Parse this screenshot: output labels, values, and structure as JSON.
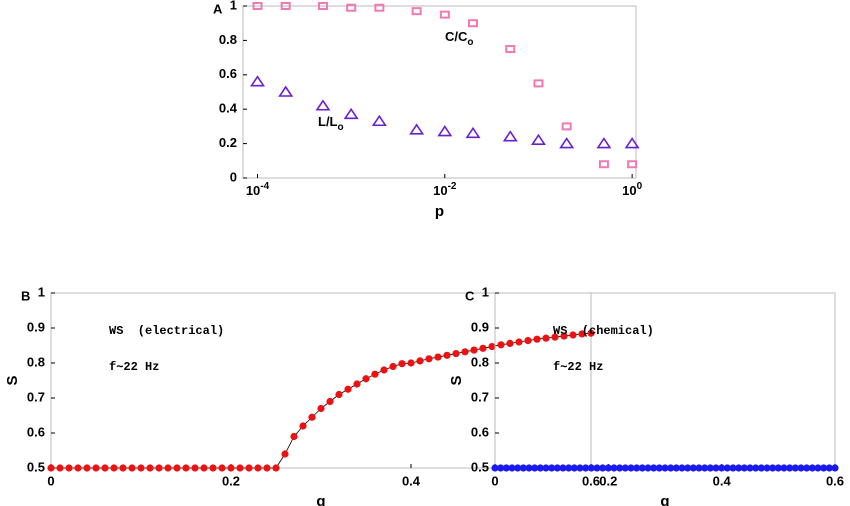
{
  "chart_data": [
    {
      "type": "scatter",
      "panel": "A",
      "xlabel": "p",
      "log_x": true,
      "xlim": [
        7e-05,
        1.1
      ],
      "ylim": [
        0,
        1
      ],
      "xticks": [
        {
          "value": 0.0001,
          "label": "10",
          "exponent": "-4"
        },
        {
          "value": 0.01,
          "label": "10",
          "exponent": "-2"
        },
        {
          "value": 1,
          "label": "10",
          "exponent": "0"
        }
      ],
      "yticks": [
        0,
        0.2,
        0.4,
        0.6,
        0.8,
        1
      ],
      "x": [
        0.0001,
        0.0002,
        0.0005,
        0.001,
        0.002,
        0.005,
        0.01,
        0.02,
        0.05,
        0.1,
        0.2,
        0.5,
        1
      ],
      "series": [
        {
          "name": "C/C",
          "sub": "o",
          "marker": "square",
          "color": "#f07ab4",
          "values": [
            1.0,
            1.0,
            1.0,
            0.99,
            0.99,
            0.97,
            0.95,
            0.9,
            0.75,
            0.55,
            0.3,
            0.08,
            0.08
          ]
        },
        {
          "name": "L/L",
          "sub": "o",
          "marker": "triangle",
          "color": "#6a1fd0",
          "values": [
            0.56,
            0.5,
            0.42,
            0.37,
            0.33,
            0.28,
            0.27,
            0.26,
            0.24,
            0.22,
            0.2,
            0.2,
            0.2
          ]
        }
      ]
    },
    {
      "type": "line",
      "panel": "B",
      "xlabel": "g",
      "ylabel": "S",
      "annotations": [
        "WS  (electrical)",
        "f∼22 Hz"
      ],
      "xlim": [
        0,
        0.6
      ],
      "ylim": [
        0.5,
        1
      ],
      "xticks": [
        0,
        0.2,
        0.4,
        0.6
      ],
      "yticks": [
        0.5,
        0.6,
        0.7,
        0.8,
        0.9,
        1
      ],
      "x": [
        0,
        0.01,
        0.02,
        0.03,
        0.04,
        0.05,
        0.06,
        0.07,
        0.08,
        0.09,
        0.1,
        0.11,
        0.12,
        0.13,
        0.14,
        0.15,
        0.16,
        0.17,
        0.18,
        0.19,
        0.2,
        0.21,
        0.22,
        0.23,
        0.24,
        0.25,
        0.26,
        0.27,
        0.28,
        0.29,
        0.3,
        0.31,
        0.32,
        0.33,
        0.34,
        0.35,
        0.36,
        0.37,
        0.38,
        0.39,
        0.4,
        0.41,
        0.42,
        0.43,
        0.44,
        0.45,
        0.46,
        0.47,
        0.48,
        0.49,
        0.5,
        0.51,
        0.52,
        0.53,
        0.54,
        0.55,
        0.56,
        0.57,
        0.58,
        0.59,
        0.6
      ],
      "series": [
        {
          "marker": "dot",
          "color": "#ee1111",
          "values": [
            0.5,
            0.5,
            0.5,
            0.5,
            0.5,
            0.5,
            0.5,
            0.5,
            0.5,
            0.5,
            0.5,
            0.5,
            0.5,
            0.5,
            0.5,
            0.5,
            0.5,
            0.5,
            0.5,
            0.5,
            0.5,
            0.5,
            0.5,
            0.5,
            0.5,
            0.5,
            0.54,
            0.59,
            0.62,
            0.645,
            0.67,
            0.69,
            0.71,
            0.725,
            0.74,
            0.755,
            0.768,
            0.78,
            0.79,
            0.798,
            0.8,
            0.806,
            0.812,
            0.817,
            0.822,
            0.827,
            0.832,
            0.837,
            0.842,
            0.847,
            0.852,
            0.856,
            0.86,
            0.864,
            0.868,
            0.871,
            0.874,
            0.877,
            0.88,
            0.883,
            0.885
          ]
        }
      ]
    },
    {
      "type": "line",
      "panel": "C",
      "xlabel": "g",
      "ylabel": "S",
      "annotations": [
        "WS  (chemical)",
        "f∼22 Hz"
      ],
      "xlim": [
        0,
        0.6
      ],
      "ylim": [
        0.5,
        1
      ],
      "xticks": [
        0,
        0.2,
        0.4,
        0.6
      ],
      "yticks": [
        0.5,
        0.6,
        0.7,
        0.8,
        0.9,
        1
      ],
      "x": [
        0,
        0.01,
        0.02,
        0.03,
        0.04,
        0.05,
        0.06,
        0.07,
        0.08,
        0.09,
        0.1,
        0.11,
        0.12,
        0.13,
        0.14,
        0.15,
        0.16,
        0.17,
        0.18,
        0.19,
        0.2,
        0.21,
        0.22,
        0.23,
        0.24,
        0.25,
        0.26,
        0.27,
        0.28,
        0.29,
        0.3,
        0.31,
        0.32,
        0.33,
        0.34,
        0.35,
        0.36,
        0.37,
        0.38,
        0.39,
        0.4,
        0.41,
        0.42,
        0.43,
        0.44,
        0.45,
        0.46,
        0.47,
        0.48,
        0.49,
        0.5,
        0.51,
        0.52,
        0.53,
        0.54,
        0.55,
        0.56,
        0.57,
        0.58,
        0.59,
        0.6
      ],
      "series": [
        {
          "marker": "dot",
          "color": "#1a1aee",
          "values": [
            0.5,
            0.5,
            0.5,
            0.5,
            0.5,
            0.5,
            0.5,
            0.5,
            0.5,
            0.5,
            0.5,
            0.5,
            0.5,
            0.5,
            0.5,
            0.5,
            0.5,
            0.5,
            0.5,
            0.5,
            0.5,
            0.5,
            0.5,
            0.5,
            0.5,
            0.5,
            0.5,
            0.5,
            0.5,
            0.5,
            0.5,
            0.5,
            0.5,
            0.5,
            0.5,
            0.5,
            0.5,
            0.5,
            0.5,
            0.5,
            0.5,
            0.5,
            0.5,
            0.5,
            0.5,
            0.5,
            0.5,
            0.5,
            0.5,
            0.5,
            0.5,
            0.5,
            0.5,
            0.5,
            0.5,
            0.5,
            0.5,
            0.5,
            0.5,
            0.5,
            0.5
          ]
        }
      ]
    }
  ]
}
